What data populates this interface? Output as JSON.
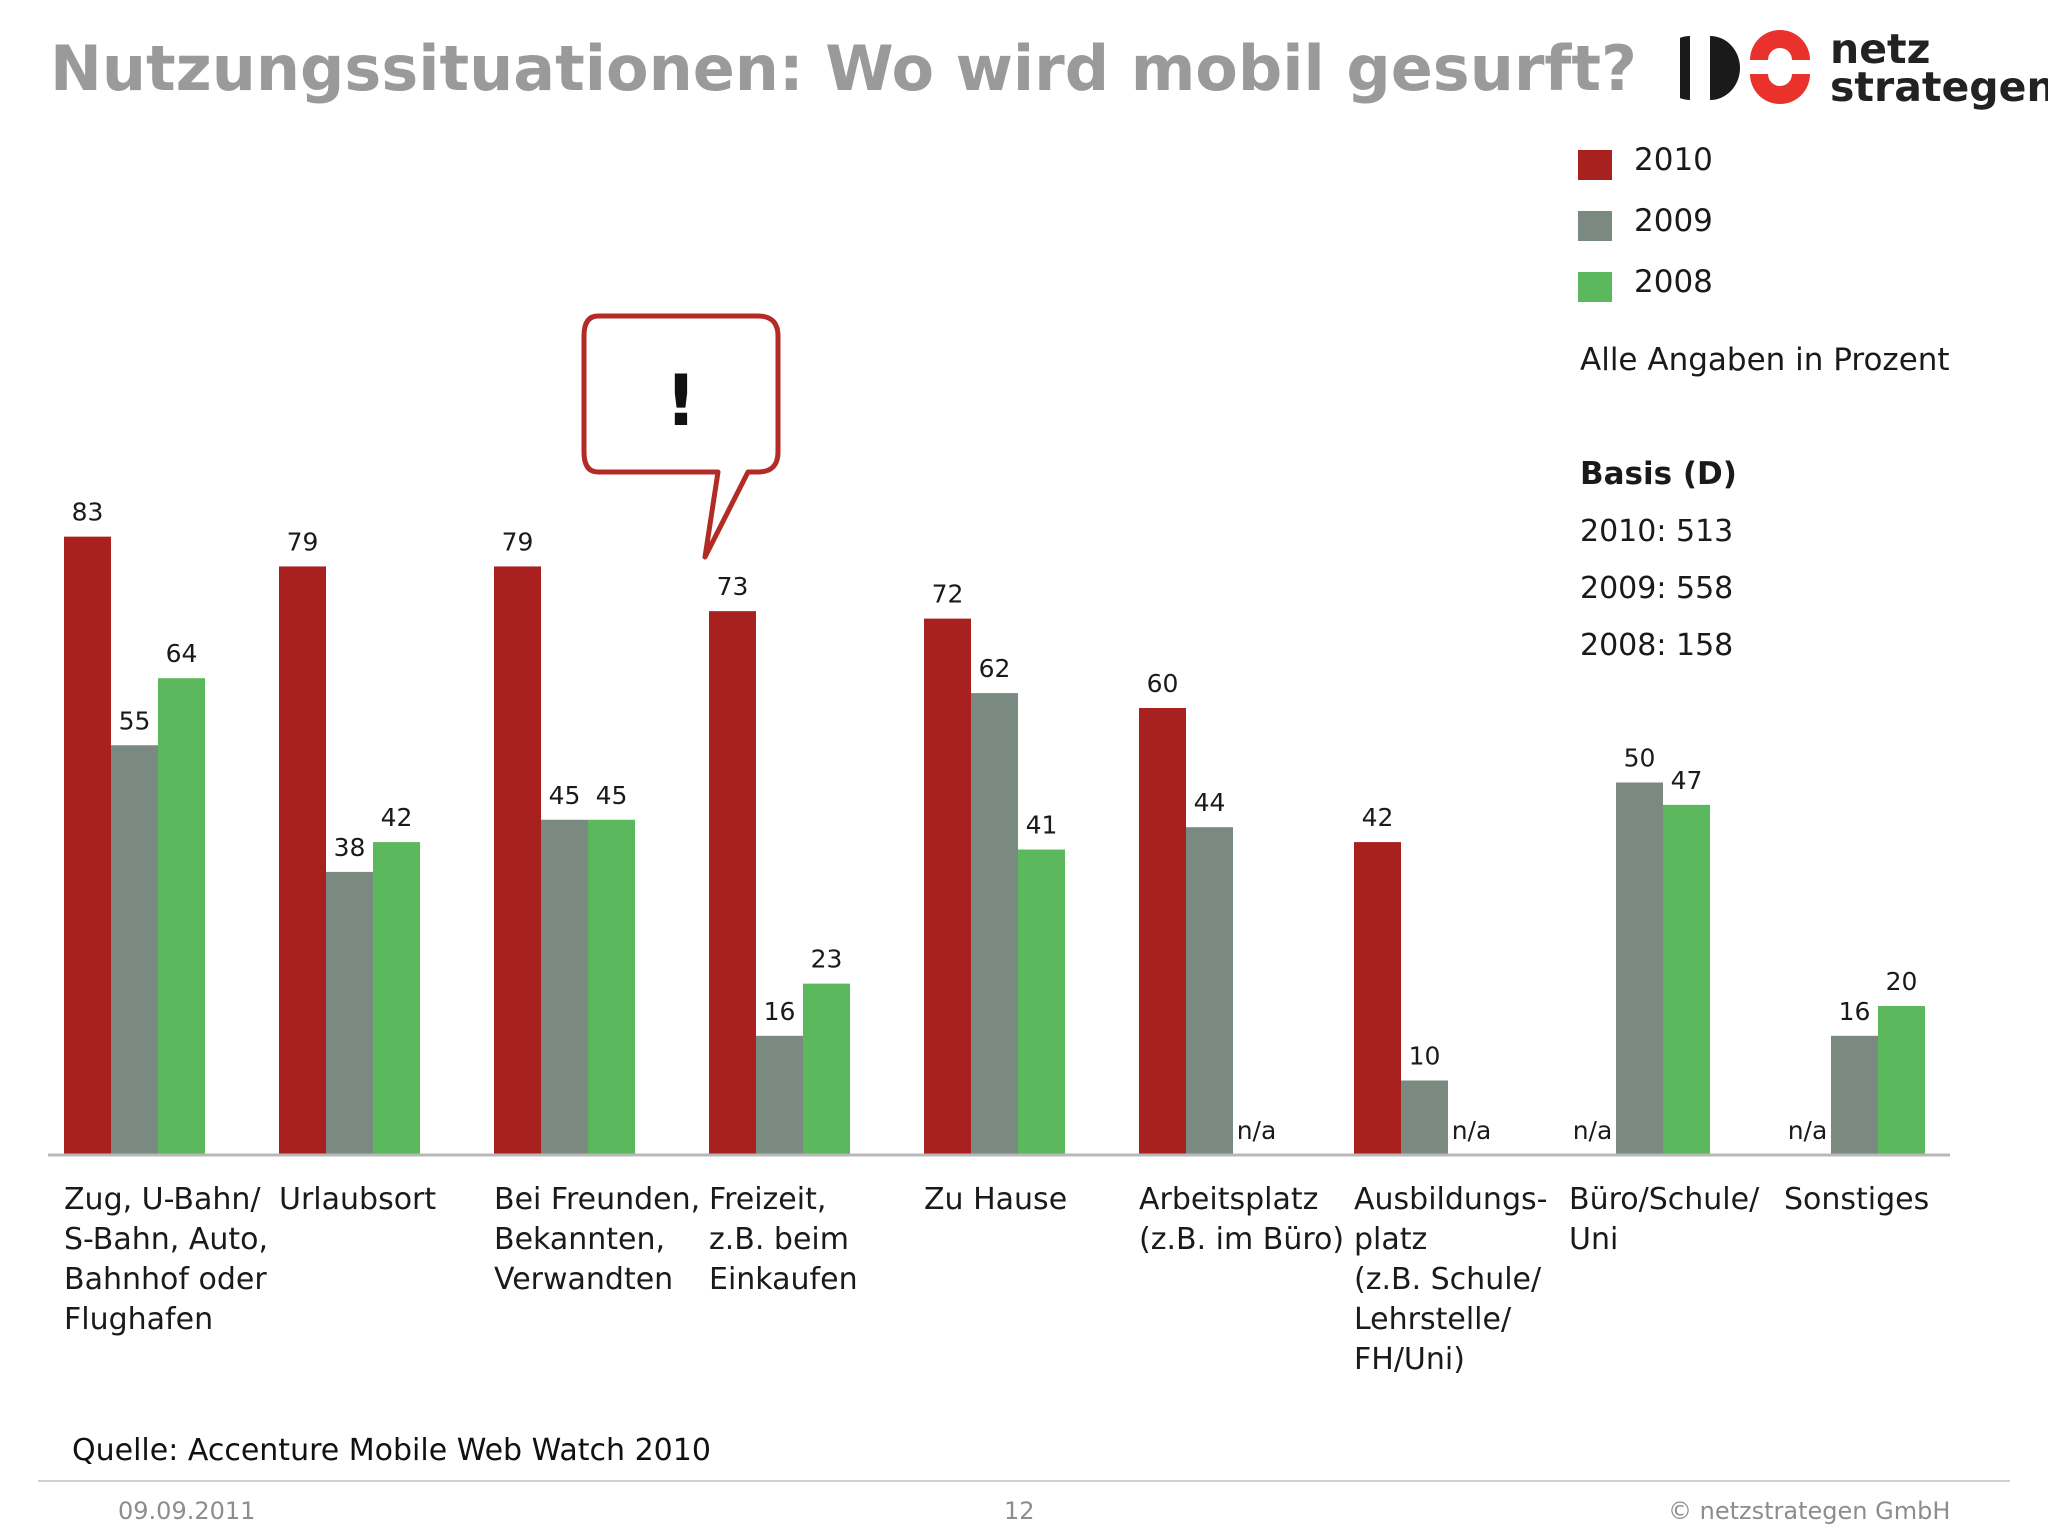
{
  "title": "Nutzungssituationen: Wo wird mobil gesurft?",
  "logo": {
    "line1": "netz",
    "line2": "strategen"
  },
  "legend": [
    {
      "label": "2010",
      "color": "#a8211f"
    },
    {
      "label": "2009",
      "color": "#7a8a80"
    },
    {
      "label": "2008",
      "color": "#5cb85c"
    }
  ],
  "note": "Alle Angaben in Prozent",
  "basis": {
    "title": "Basis (D)",
    "lines": [
      "2010: 513",
      "2009: 558",
      "2008: 158"
    ]
  },
  "callout": {
    "text": "!"
  },
  "chart_data": {
    "type": "bar",
    "categories": [
      "Zug, U-Bahn/\nS-Bahn, Auto,\nBahnhof oder\nFlughafen",
      "Urlaubsort",
      "Bei Freunden,\nBekannten,\nVerwandten",
      "Freizeit,\nz.B. beim\nEinkaufen",
      "Zu Hause",
      "Arbeitsplatz\n(z.B. im Büro)",
      "Ausbildungs-\nplatz\n(z.B. Schule/\nLehrstelle/\nFH/Uni)",
      "Büro/Schule/\nUni",
      "Sonstiges"
    ],
    "series": [
      {
        "name": "2010",
        "color": "#a8211f",
        "values": [
          83,
          79,
          79,
          73,
          72,
          60,
          42,
          null,
          null
        ]
      },
      {
        "name": "2009",
        "color": "#7a8a80",
        "values": [
          55,
          38,
          45,
          16,
          62,
          44,
          10,
          50,
          16
        ]
      },
      {
        "name": "2008",
        "color": "#5cb85c",
        "values": [
          64,
          42,
          45,
          23,
          41,
          null,
          null,
          47,
          20
        ]
      }
    ],
    "missing_label": "n/a",
    "ylim": [
      0,
      100
    ],
    "grid": false,
    "legend_position": "top-right"
  },
  "source": "Quelle: Accenture Mobile Web Watch 2010",
  "footer": {
    "date": "09.09.2011",
    "page": "12",
    "copyright": "© netzstrategen GmbH"
  }
}
